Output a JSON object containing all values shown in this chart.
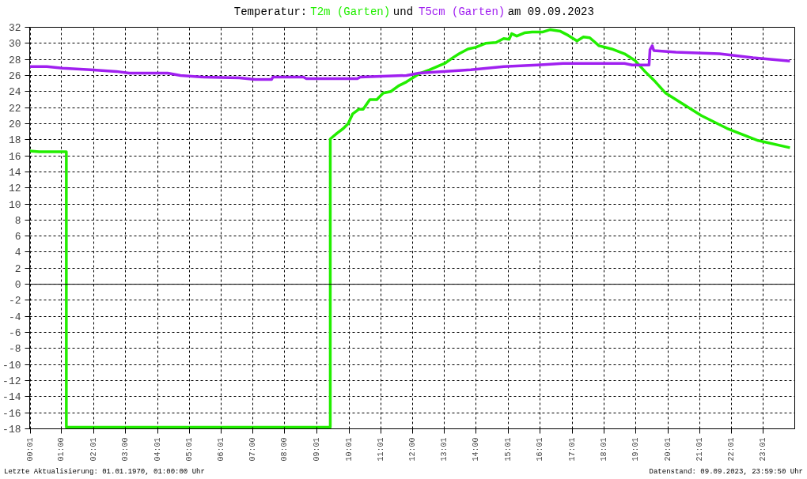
{
  "chart_data": {
    "type": "line",
    "title": "Temperatur:",
    "subtitle": "am 09.09.2023",
    "annotations": [
      "und",
      "Letzte Aktualisierung: 01.01.1970, 01:00:00 Uhr",
      "Datenstand: 09.09.2023, 23:59:50 Uhr"
    ],
    "series": [
      {
        "name": "T2m (Garten)",
        "color": "#22ee00",
        "x": [
          0,
          0.3,
          1.15,
          1.15,
          9.43,
          9.43,
          9.64,
          9.84,
          9.99,
          10.13,
          10.33,
          10.46,
          10.67,
          10.89,
          11.09,
          11.33,
          11.57,
          11.82,
          11.9,
          12.21,
          12.54,
          13.02,
          13.27,
          13.47,
          13.75,
          13.99,
          14.3,
          14.63,
          14.87,
          15.04,
          15.12,
          15.28,
          15.52,
          15.76,
          16.08,
          16.32,
          16.65,
          16.89,
          17.17,
          17.37,
          17.57,
          17.86,
          18.26,
          18.66,
          18.98,
          19.3,
          19.63,
          19.95,
          20.43,
          21.07,
          21.88,
          22.85,
          23.85
        ],
        "values": [
          16.6,
          16.5,
          16.5,
          -17.8,
          -17.8,
          18.1,
          18.8,
          19.4,
          20.0,
          21.2,
          21.8,
          21.8,
          23.0,
          23.0,
          23.8,
          24.0,
          24.7,
          25.2,
          25.4,
          26.2,
          26.7,
          27.5,
          28.2,
          28.7,
          29.3,
          29.5,
          30.0,
          30.1,
          30.6,
          30.5,
          31.2,
          30.9,
          31.3,
          31.4,
          31.4,
          31.7,
          31.5,
          31.0,
          30.3,
          30.8,
          30.7,
          29.7,
          29.3,
          28.7,
          27.9,
          26.5,
          25.2,
          23.8,
          22.6,
          21.0,
          19.4,
          17.9,
          17.0
        ]
      },
      {
        "name": "T5cm (Garten)",
        "color": "#a020f0",
        "x": [
          0,
          0.54,
          1.03,
          1.91,
          2.72,
          3.12,
          4.33,
          4.73,
          5.45,
          6.58,
          7.07,
          7.59,
          7.63,
          8.59,
          8.68,
          10.28,
          10.37,
          11.82,
          12.21,
          13.84,
          14.87,
          15.92,
          16.73,
          18.66,
          18.9,
          19.43,
          19.46,
          19.53,
          19.58,
          20.27,
          21.64,
          22.69,
          23.85
        ],
        "values": [
          27.1,
          27.1,
          26.9,
          26.7,
          26.5,
          26.3,
          26.3,
          26.0,
          25.8,
          25.7,
          25.5,
          25.5,
          25.8,
          25.8,
          25.6,
          25.6,
          25.8,
          26.0,
          26.3,
          26.7,
          27.1,
          27.3,
          27.5,
          27.5,
          27.3,
          27.3,
          29.2,
          29.7,
          29.1,
          28.9,
          28.7,
          28.2,
          27.8
        ]
      }
    ],
    "xlim": [
      0,
      24
    ],
    "xticks": [
      {
        "value": 0.0167,
        "label": "00:01"
      },
      {
        "value": 1,
        "label": "01:00"
      },
      {
        "value": 2.0167,
        "label": "02:01"
      },
      {
        "value": 3,
        "label": "03:00"
      },
      {
        "value": 4.0167,
        "label": "04:01"
      },
      {
        "value": 5.0167,
        "label": "05:01"
      },
      {
        "value": 6.0167,
        "label": "06:01"
      },
      {
        "value": 7,
        "label": "07:00"
      },
      {
        "value": 8,
        "label": "08:00"
      },
      {
        "value": 9.0167,
        "label": "09:01"
      },
      {
        "value": 10.0167,
        "label": "10:01"
      },
      {
        "value": 11.0167,
        "label": "11:01"
      },
      {
        "value": 12,
        "label": "12:00"
      },
      {
        "value": 13.0167,
        "label": "13:01"
      },
      {
        "value": 14,
        "label": "14:00"
      },
      {
        "value": 15.0167,
        "label": "15:01"
      },
      {
        "value": 16.0167,
        "label": "16:01"
      },
      {
        "value": 17.0167,
        "label": "17:01"
      },
      {
        "value": 18.0167,
        "label": "18:01"
      },
      {
        "value": 19.0167,
        "label": "19:01"
      },
      {
        "value": 20.0167,
        "label": "20:01"
      },
      {
        "value": 21.0167,
        "label": "21:01"
      },
      {
        "value": 22.0167,
        "label": "22:01"
      },
      {
        "value": 23.0167,
        "label": "23:01"
      }
    ],
    "ylim": [
      -18,
      32
    ],
    "yticks": [
      -18,
      -16,
      -14,
      -12,
      -10,
      -8,
      -6,
      -4,
      -2,
      0,
      2,
      4,
      6,
      8,
      10,
      12,
      14,
      16,
      18,
      20,
      22,
      24,
      26,
      28,
      30,
      32
    ],
    "ref_lines": [
      {
        "axis": "y",
        "value": 0,
        "color": "#000000",
        "line_style": "solid"
      }
    ],
    "grid": true,
    "line_style": "solid",
    "marker": "none"
  }
}
